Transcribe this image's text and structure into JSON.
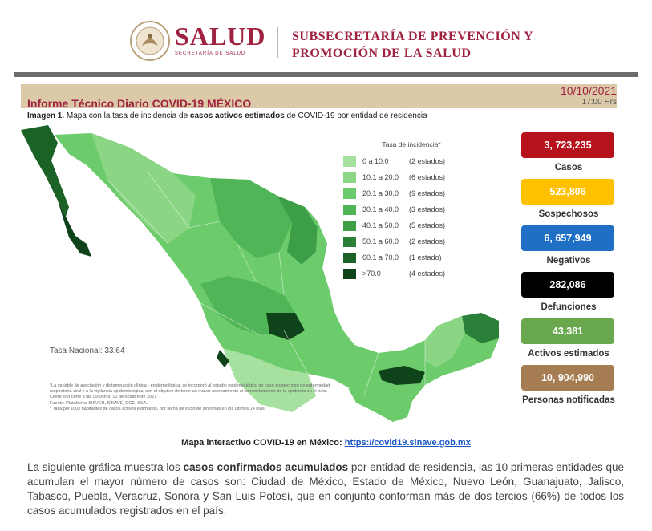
{
  "header": {
    "brand_title": "SALUD",
    "brand_subtitle": "SECRETARÍA DE SALUD",
    "subsecretaria_line1": "SUBSECRETARÍA DE PREVENCIÓN Y",
    "subsecretaria_line2": "PROMOCIÓN DE LA SALUD"
  },
  "report": {
    "title": "Informe Técnico Diario COVID-19 MÉXICO",
    "date": "10/10/2021",
    "time": "17:00 Hrs"
  },
  "caption": {
    "label": "Imagen 1.",
    "part1": " Mapa con la tasa de incidencia de ",
    "bold": "casos activos estimados",
    "part2": " de COVID-19 por entidad de residencia"
  },
  "legend": {
    "title": "Tasa de incidencia*",
    "rows": [
      {
        "range": "0   a  10.0",
        "count": "(2 estados)",
        "color": "#a6e1a0"
      },
      {
        "range": "10.1 a 20.0",
        "count": "(6 estados)",
        "color": "#8ad685"
      },
      {
        "range": "20.1 a 30.0",
        "count": "(9 estados)",
        "color": "#6ccb6b"
      },
      {
        "range": "30.1 a 40.0",
        "count": "(3 estados)",
        "color": "#4fb556"
      },
      {
        "range": "40.1 a 50.0",
        "count": "(5 estados)",
        "color": "#3c9e47"
      },
      {
        "range": "50.1 a 60.0",
        "count": "(2 estados)",
        "color": "#2a8038"
      },
      {
        "range": "60.1 a 70.0",
        "count": "(1 estado)",
        "color": "#1b6227"
      },
      {
        "range": ">70.0",
        "count": "(4 estados)",
        "color": "#0f431a"
      }
    ]
  },
  "map": {
    "tasa_nacional": "Tasa Nacional: 33.64",
    "note1": "*La variable de asociación y dictaminación clínica - epidemiológica, se incorporó al estudio epidemiológico de caso sospechoso de enfermedad respiratoria viral y a la vigilancia epidemiológica, con el objetivo de tener un mayor acercamiento al comportamiento de la epidemia en el país.",
    "note2": "Cierre con corte a las 09:00hrs, 10 de octubre de 2021",
    "note3": "Fuente: Plataforma SISVER, SINAVE, DGE, SSA.",
    "note4": "* Tasa por 100k habitantes de casos activos estimados, por fecha de inicio de síntomas en los últimos 14 días"
  },
  "stats": [
    {
      "value": "3, 723,235",
      "label": "Casos",
      "color": "#b5121b"
    },
    {
      "value": "523,806",
      "label": "Sospechosos",
      "color": "#ffc000"
    },
    {
      "value": "6, 657,949",
      "label": "Negativos",
      "color": "#1f6fc5"
    },
    {
      "value": "282,086",
      "label": "Defunciones",
      "color": "#000000"
    },
    {
      "value": "43,381",
      "label": "Activos estimados",
      "color": "#6aa84f"
    },
    {
      "value": "10, 904,990",
      "label": "Personas notificadas",
      "color": "#a67c52"
    }
  ],
  "link": {
    "prefix": "Mapa interactivo COVID-19 en México: ",
    "url": "https://covid19.sinave.gob.mx"
  },
  "paragraph": {
    "part1": "La siguiente gráfica muestra los ",
    "bold": "casos confirmados acumulados",
    "part2": " por entidad de residencia, las 10 primeras entidades que acumulan el mayor número de casos son: Ciudad de México, Estado de México, Nuevo León, Guanajuato, Jalisco, Tabasco, Puebla, Veracruz, Sonora y San Luis Potosí, que en conjunto conforman más de dos tercios (66%) de todos los casos acumulados registrados en el país."
  }
}
